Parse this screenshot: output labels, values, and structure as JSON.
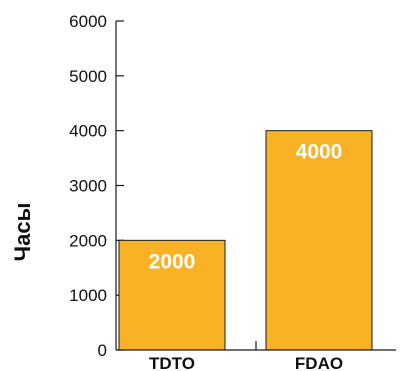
{
  "chart_data": {
    "type": "bar",
    "categories": [
      "TDTO",
      "FDAO"
    ],
    "values": [
      2000,
      4000
    ],
    "data_labels": [
      "2000",
      "4000"
    ],
    "ylabel": "Часы",
    "xlabel": "",
    "ylim": [
      0,
      6000
    ],
    "yticks": [
      "0",
      "1000",
      "2000",
      "3000",
      "4000",
      "5000",
      "6000"
    ],
    "grid": false,
    "legend": "none",
    "colors": {
      "bar_fill": "#F9B126",
      "bar_stroke": "#1a1a1a",
      "axis": "#1a1a1a",
      "data_label": "#ffffff"
    }
  }
}
